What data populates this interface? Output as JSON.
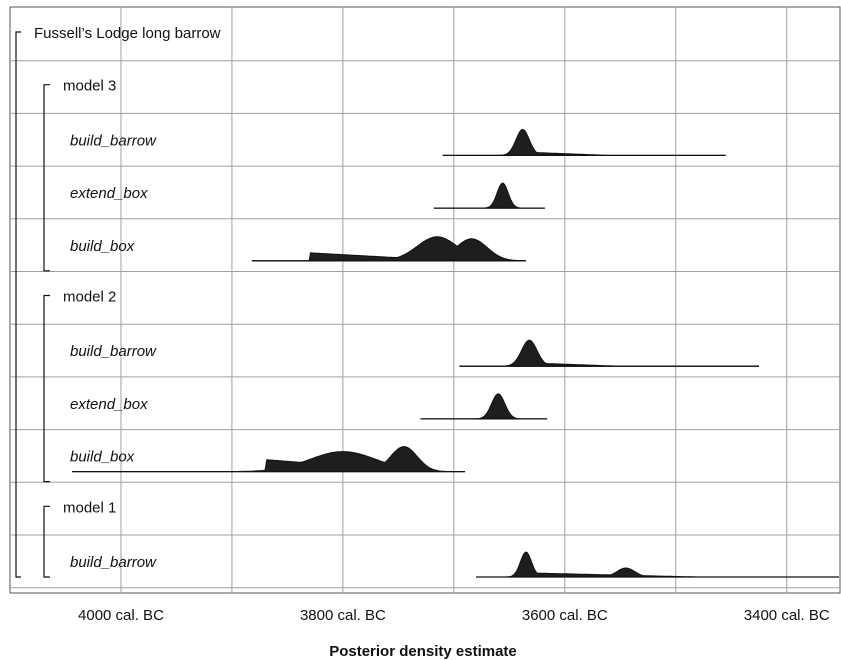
{
  "chart_data": {
    "type": "area",
    "subtype": "posterior-density-ridgeline",
    "x_axis": {
      "label": "Posterior density estimate",
      "reversed": true,
      "unit_suffix": "BC",
      "range_bc": [
        4100,
        3352
      ],
      "ticks": [
        {
          "value": 4000,
          "label": "4000 cal. BC"
        },
        {
          "value": 3800,
          "label": "3800 cal. BC"
        },
        {
          "value": 3600,
          "label": "3600 cal. BC"
        },
        {
          "value": 3400,
          "label": "3400 cal. BC"
        }
      ],
      "gridlines_bc": [
        4000,
        3900,
        3800,
        3700,
        3600,
        3500,
        3400
      ]
    },
    "grid": true,
    "colors": {
      "fill": "#1e1e1e",
      "grid": "#a0a0a0",
      "frame": "#555555"
    },
    "rows": [
      {
        "id": "site",
        "label": "Fussell’s Lodge long barrow",
        "italic": false,
        "level": 0
      },
      {
        "id": "m3",
        "label": "model 3",
        "italic": false,
        "level": 1
      },
      {
        "id": "m3_barrow",
        "label": "build_barrow",
        "italic": true,
        "level": 2,
        "range_bc": [
          3710,
          3455
        ],
        "peaks": [
          {
            "center": 3638,
            "sd": 6,
            "height": 26
          }
        ],
        "tail": {
          "from": 3630,
          "to": 3560,
          "height": 3
        }
      },
      {
        "id": "m3_ext",
        "label": "extend_box",
        "italic": true,
        "level": 2,
        "range_bc": [
          3718,
          3618
        ],
        "peaks": [
          {
            "center": 3656,
            "sd": 5,
            "height": 25
          }
        ]
      },
      {
        "id": "m3_box",
        "label": "build_box",
        "italic": true,
        "level": 2,
        "range_bc": [
          3882,
          3635
        ],
        "peaks": [
          {
            "center": 3715,
            "sd": 18,
            "height": 24
          },
          {
            "center": 3684,
            "sd": 14,
            "height": 22
          }
        ],
        "tail": {
          "from": 3830,
          "to": 3700,
          "height": 8
        }
      },
      {
        "id": "m2",
        "label": "model 2",
        "italic": false,
        "level": 1
      },
      {
        "id": "m2_barrow",
        "label": "build_barrow",
        "italic": true,
        "level": 2,
        "range_bc": [
          3695,
          3425
        ],
        "peaks": [
          {
            "center": 3632,
            "sd": 7,
            "height": 26
          }
        ],
        "tail": {
          "from": 3625,
          "to": 3550,
          "height": 3
        }
      },
      {
        "id": "m2_ext",
        "label": "extend_box",
        "italic": true,
        "level": 2,
        "range_bc": [
          3730,
          3616
        ],
        "peaks": [
          {
            "center": 3660,
            "sd": 6,
            "height": 25
          }
        ]
      },
      {
        "id": "m2_box",
        "label": "build_box",
        "italic": true,
        "level": 2,
        "range_bc": [
          4044,
          3690
        ],
        "peaks": [
          {
            "center": 3800,
            "sd": 30,
            "height": 20
          },
          {
            "center": 3745,
            "sd": 12,
            "height": 25
          }
        ],
        "tail": {
          "from": 3870,
          "to": 3730,
          "height": 12
        }
      },
      {
        "id": "m1",
        "label": "model 1",
        "italic": false,
        "level": 1
      },
      {
        "id": "m1_barrow",
        "label": "build_barrow",
        "italic": true,
        "level": 2,
        "range_bc": [
          3680,
          3353
        ],
        "peaks": [
          {
            "center": 3635,
            "sd": 5,
            "height": 25
          },
          {
            "center": 3545,
            "sd": 8,
            "height": 9
          }
        ],
        "tail": {
          "from": 3630,
          "to": 3480,
          "height": 4
        }
      }
    ]
  }
}
